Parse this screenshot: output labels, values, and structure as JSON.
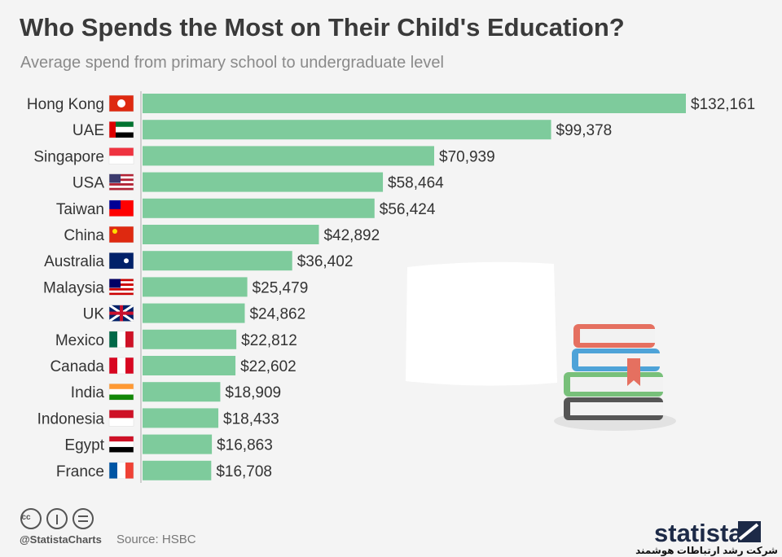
{
  "chart_data": {
    "type": "bar",
    "orientation": "horizontal",
    "title": "Who Spends the Most on Their Child's Education?",
    "subtitle": "Average spend from primary school to undergraduate level",
    "categories": [
      "Hong Kong",
      "UAE",
      "Singapore",
      "USA",
      "Taiwan",
      "China",
      "Australia",
      "Malaysia",
      "UK",
      "Mexico",
      "Canada",
      "India",
      "Indonesia",
      "Egypt",
      "France"
    ],
    "values": [
      132161,
      99378,
      70939,
      58464,
      56424,
      42892,
      36402,
      25479,
      24862,
      22812,
      22602,
      18909,
      18433,
      16863,
      16708
    ],
    "value_labels": [
      "$132,161",
      "$99,378",
      "$70,939",
      "$58,464",
      "$56,424",
      "$42,892",
      "$36,402",
      "$25,479",
      "$24,862",
      "$22,812",
      "$22,602",
      "$18,909",
      "$18,433",
      "$16,863",
      "$16,708"
    ],
    "color": "#7ecb9c",
    "credit": "@StatistaCharts",
    "source": "Source: HSBC",
    "brand": "statista",
    "watermark": "شرکت رشد ارتباطات هوشمند"
  }
}
